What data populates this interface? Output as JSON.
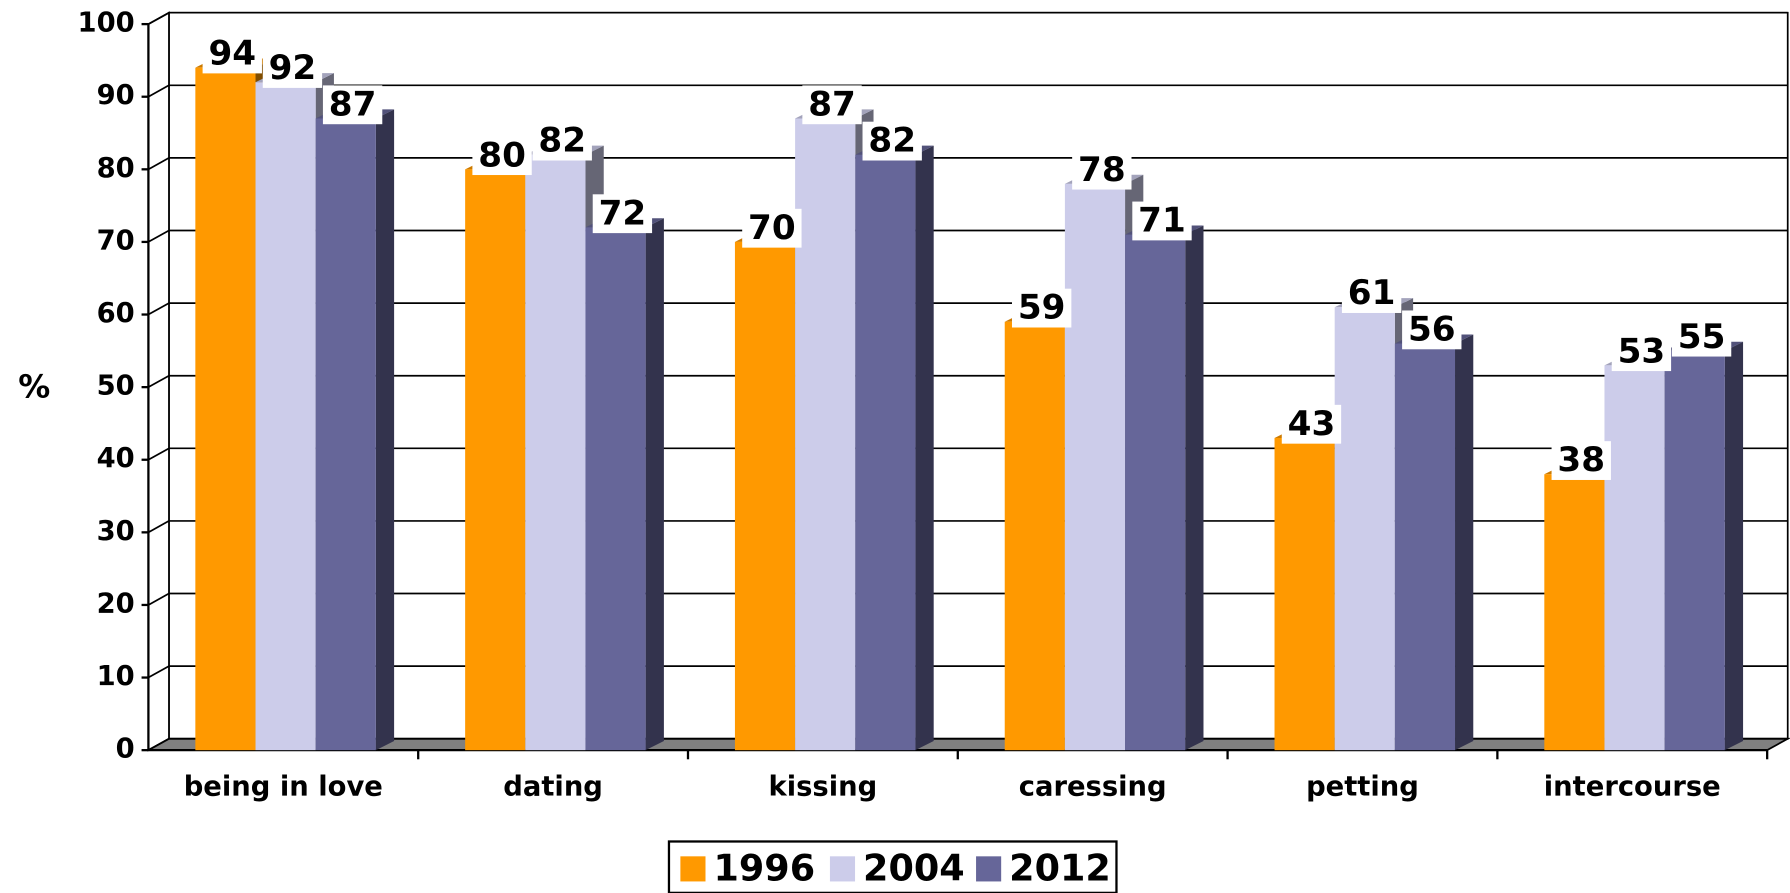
{
  "chart_data": {
    "type": "bar3d",
    "y_label": "%",
    "categories": [
      "being in love",
      "dating",
      "kissing",
      "caressing",
      "petting",
      "intercourse"
    ],
    "series": [
      {
        "name": "1996",
        "color": "#ff9900",
        "values": [
          94,
          80,
          70,
          59,
          43,
          38
        ]
      },
      {
        "name": "2004",
        "color": "#ccccea",
        "values": [
          92,
          82,
          87,
          78,
          61,
          53
        ]
      },
      {
        "name": "2012",
        "color": "#666699",
        "values": [
          87,
          72,
          82,
          71,
          56,
          55
        ]
      }
    ],
    "ylim": [
      0,
      100
    ],
    "yticks": [
      0,
      10,
      20,
      30,
      40,
      50,
      60,
      70,
      80,
      90,
      100
    ],
    "grid": true,
    "legend": "bottom"
  }
}
